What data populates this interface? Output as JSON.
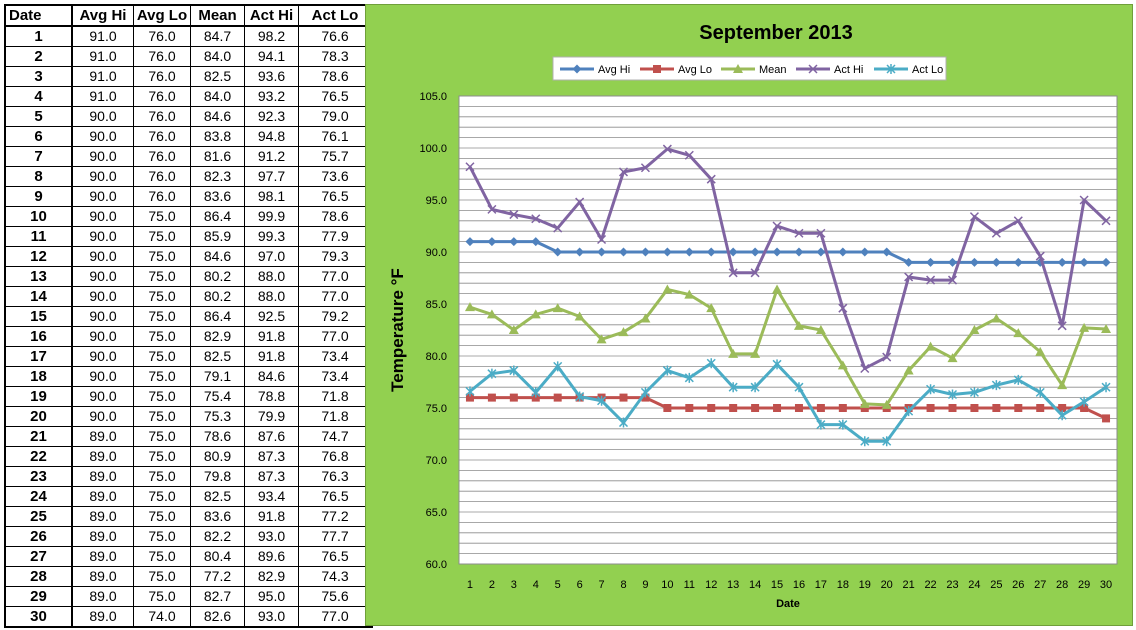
{
  "table": {
    "headers": [
      "Date",
      "Avg Hi",
      "Avg Lo",
      "Mean",
      "Act Hi",
      "Act Lo"
    ],
    "rows": [
      [
        "1",
        "91.0",
        "76.0",
        "84.7",
        "98.2",
        "76.6"
      ],
      [
        "2",
        "91.0",
        "76.0",
        "84.0",
        "94.1",
        "78.3"
      ],
      [
        "3",
        "91.0",
        "76.0",
        "82.5",
        "93.6",
        "78.6"
      ],
      [
        "4",
        "91.0",
        "76.0",
        "84.0",
        "93.2",
        "76.5"
      ],
      [
        "5",
        "90.0",
        "76.0",
        "84.6",
        "92.3",
        "79.0"
      ],
      [
        "6",
        "90.0",
        "76.0",
        "83.8",
        "94.8",
        "76.1"
      ],
      [
        "7",
        "90.0",
        "76.0",
        "81.6",
        "91.2",
        "75.7"
      ],
      [
        "8",
        "90.0",
        "76.0",
        "82.3",
        "97.7",
        "73.6"
      ],
      [
        "9",
        "90.0",
        "76.0",
        "83.6",
        "98.1",
        "76.5"
      ],
      [
        "10",
        "90.0",
        "75.0",
        "86.4",
        "99.9",
        "78.6"
      ],
      [
        "11",
        "90.0",
        "75.0",
        "85.9",
        "99.3",
        "77.9"
      ],
      [
        "12",
        "90.0",
        "75.0",
        "84.6",
        "97.0",
        "79.3"
      ],
      [
        "13",
        "90.0",
        "75.0",
        "80.2",
        "88.0",
        "77.0"
      ],
      [
        "14",
        "90.0",
        "75.0",
        "80.2",
        "88.0",
        "77.0"
      ],
      [
        "15",
        "90.0",
        "75.0",
        "86.4",
        "92.5",
        "79.2"
      ],
      [
        "16",
        "90.0",
        "75.0",
        "82.9",
        "91.8",
        "77.0"
      ],
      [
        "17",
        "90.0",
        "75.0",
        "82.5",
        "91.8",
        "73.4"
      ],
      [
        "18",
        "90.0",
        "75.0",
        "79.1",
        "84.6",
        "73.4"
      ],
      [
        "19",
        "90.0",
        "75.0",
        "75.4",
        "78.8",
        "71.8"
      ],
      [
        "20",
        "90.0",
        "75.0",
        "75.3",
        "79.9",
        "71.8"
      ],
      [
        "21",
        "89.0",
        "75.0",
        "78.6",
        "87.6",
        "74.7"
      ],
      [
        "22",
        "89.0",
        "75.0",
        "80.9",
        "87.3",
        "76.8"
      ],
      [
        "23",
        "89.0",
        "75.0",
        "79.8",
        "87.3",
        "76.3"
      ],
      [
        "24",
        "89.0",
        "75.0",
        "82.5",
        "93.4",
        "76.5"
      ],
      [
        "25",
        "89.0",
        "75.0",
        "83.6",
        "91.8",
        "77.2"
      ],
      [
        "26",
        "89.0",
        "75.0",
        "82.2",
        "93.0",
        "77.7"
      ],
      [
        "27",
        "89.0",
        "75.0",
        "80.4",
        "89.6",
        "76.5"
      ],
      [
        "28",
        "89.0",
        "75.0",
        "77.2",
        "82.9",
        "74.3"
      ],
      [
        "29",
        "89.0",
        "75.0",
        "82.7",
        "95.0",
        "75.6"
      ],
      [
        "30",
        "89.0",
        "74.0",
        "82.6",
        "93.0",
        "77.0"
      ]
    ]
  },
  "chart_data": {
    "type": "line",
    "title": "September 2013",
    "xlabel": "Date",
    "ylabel": "Temperature °F",
    "x": [
      1,
      2,
      3,
      4,
      5,
      6,
      7,
      8,
      9,
      10,
      11,
      12,
      13,
      14,
      15,
      16,
      17,
      18,
      19,
      20,
      21,
      22,
      23,
      24,
      25,
      26,
      27,
      28,
      29,
      30
    ],
    "ylim": [
      60.0,
      105.0
    ],
    "y_ticks": [
      "60.0",
      "65.0",
      "70.0",
      "75.0",
      "80.0",
      "85.0",
      "90.0",
      "95.0",
      "100.0",
      "105.0"
    ],
    "grid": true,
    "legend_position": "top",
    "background_color": "#92d050",
    "plot_background_color": "#ffffff",
    "series": [
      {
        "name": "Avg Hi",
        "color": "#4f81bd",
        "marker": "diamond",
        "values": [
          91.0,
          91.0,
          91.0,
          91.0,
          90.0,
          90.0,
          90.0,
          90.0,
          90.0,
          90.0,
          90.0,
          90.0,
          90.0,
          90.0,
          90.0,
          90.0,
          90.0,
          90.0,
          90.0,
          90.0,
          89.0,
          89.0,
          89.0,
          89.0,
          89.0,
          89.0,
          89.0,
          89.0,
          89.0,
          89.0
        ]
      },
      {
        "name": "Avg Lo",
        "color": "#c0504d",
        "marker": "square",
        "values": [
          76.0,
          76.0,
          76.0,
          76.0,
          76.0,
          76.0,
          76.0,
          76.0,
          76.0,
          75.0,
          75.0,
          75.0,
          75.0,
          75.0,
          75.0,
          75.0,
          75.0,
          75.0,
          75.0,
          75.0,
          75.0,
          75.0,
          75.0,
          75.0,
          75.0,
          75.0,
          75.0,
          75.0,
          75.0,
          74.0
        ]
      },
      {
        "name": "Mean",
        "color": "#9bbb59",
        "marker": "triangle",
        "values": [
          84.7,
          84.0,
          82.5,
          84.0,
          84.6,
          83.8,
          81.6,
          82.3,
          83.6,
          86.4,
          85.9,
          84.6,
          80.2,
          80.2,
          86.4,
          82.9,
          82.5,
          79.1,
          75.4,
          75.3,
          78.6,
          80.9,
          79.8,
          82.5,
          83.6,
          82.2,
          80.4,
          77.2,
          82.7,
          82.6
        ]
      },
      {
        "name": "Act Hi",
        "color": "#8064a2",
        "marker": "x",
        "values": [
          98.2,
          94.1,
          93.6,
          93.2,
          92.3,
          94.8,
          91.2,
          97.7,
          98.1,
          99.9,
          99.3,
          97.0,
          88.0,
          88.0,
          92.5,
          91.8,
          91.8,
          84.6,
          78.8,
          79.9,
          87.6,
          87.3,
          87.3,
          93.4,
          91.8,
          93.0,
          89.6,
          82.9,
          95.0,
          93.0
        ]
      },
      {
        "name": "Act Lo",
        "color": "#4bacc6",
        "marker": "star",
        "values": [
          76.6,
          78.3,
          78.6,
          76.5,
          79.0,
          76.1,
          75.7,
          73.6,
          76.5,
          78.6,
          77.9,
          79.3,
          77.0,
          77.0,
          79.2,
          77.0,
          73.4,
          73.4,
          71.8,
          71.8,
          74.7,
          76.8,
          76.3,
          76.5,
          77.2,
          77.7,
          76.5,
          74.3,
          75.6,
          77.0
        ]
      }
    ]
  }
}
